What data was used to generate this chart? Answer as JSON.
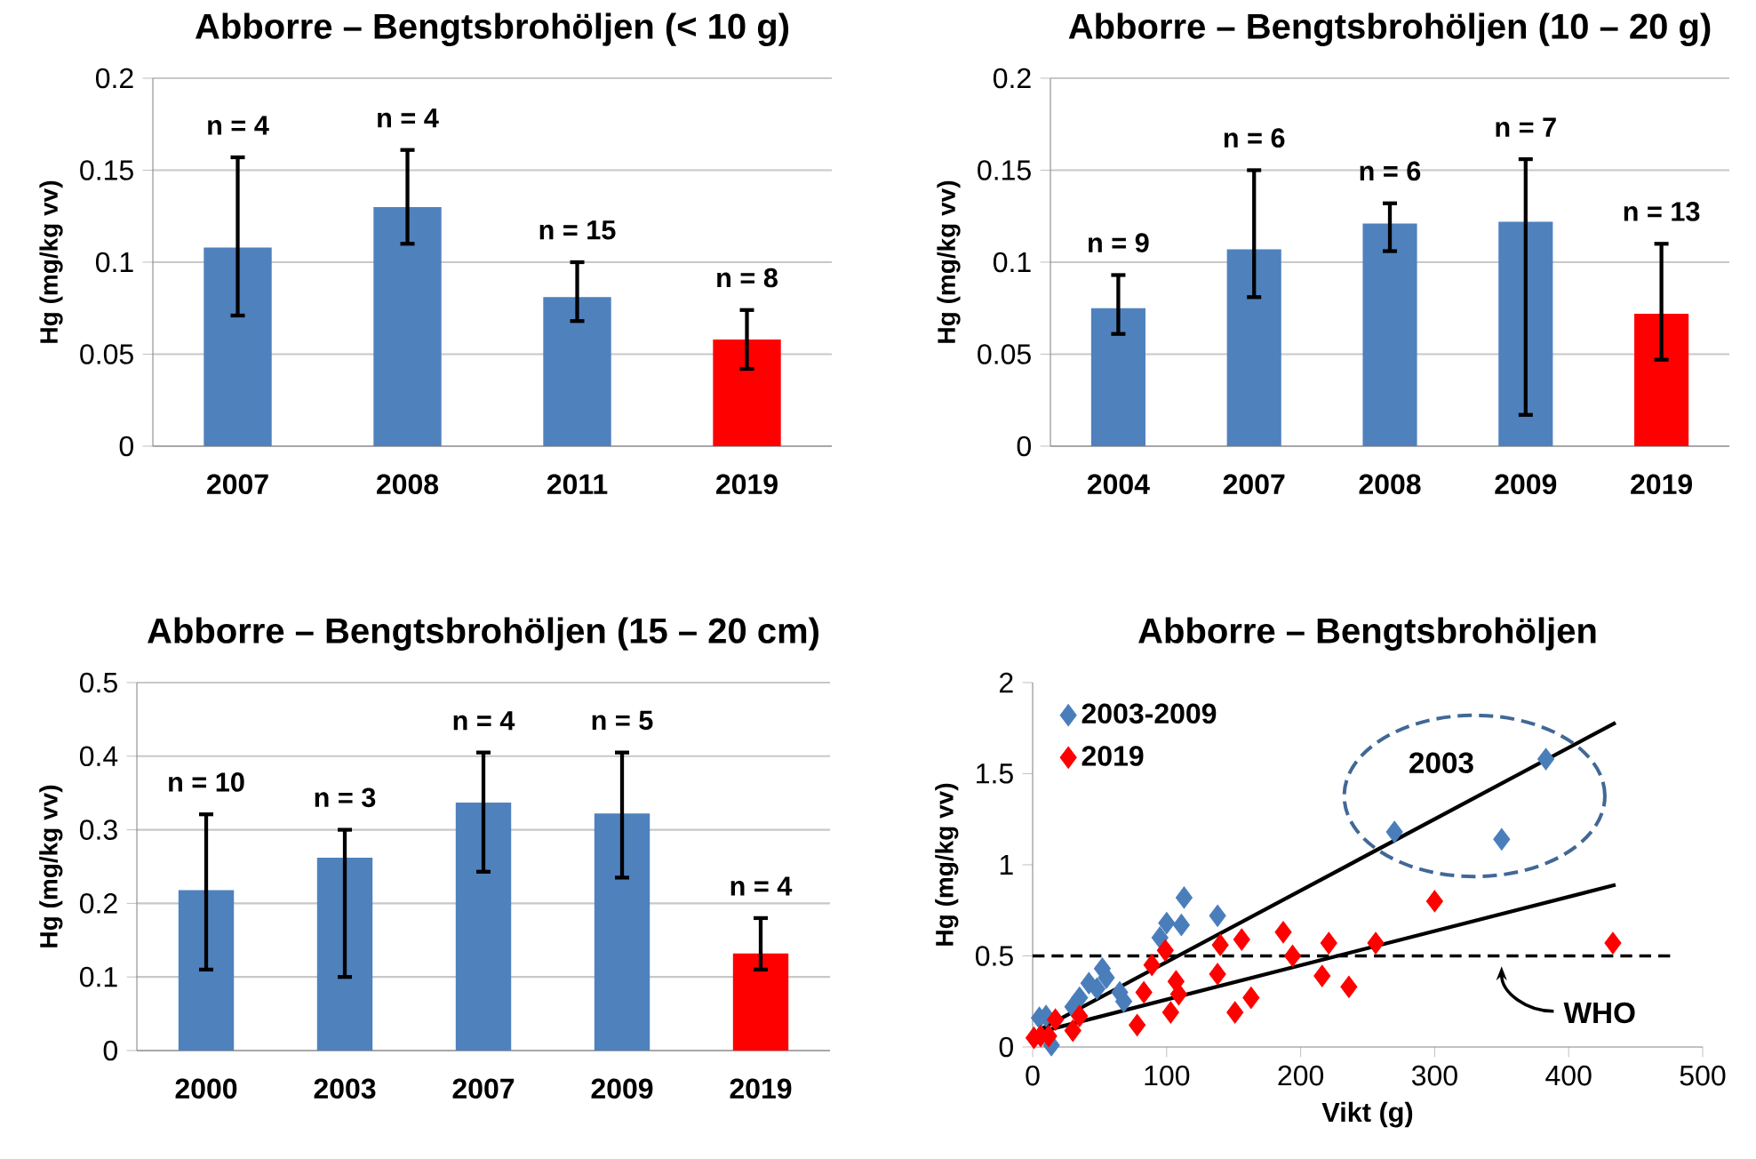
{
  "chart_data": [
    {
      "type": "bar",
      "title": "Abborre – Bengtsbrohöljen (< 10 g)",
      "ylabel": "Hg (mg/kg vv)",
      "categories": [
        "2007",
        "2008",
        "2011",
        "2019"
      ],
      "values": [
        0.108,
        0.13,
        0.081,
        0.058
      ],
      "colors": [
        "#4f81bd",
        "#4f81bd",
        "#4f81bd",
        "#ff0000"
      ],
      "errors": [
        [
          0.071,
          0.157
        ],
        [
          0.11,
          0.161
        ],
        [
          0.068,
          0.1
        ],
        [
          0.042,
          0.074
        ]
      ],
      "ylim": [
        0,
        0.2
      ],
      "yticks": [
        0,
        0.05,
        0.1,
        0.15,
        0.2
      ],
      "grid": "y",
      "annotations": [
        {
          "text": "n = 4",
          "x": "2007",
          "y": 0.157
        },
        {
          "text": "n = 4",
          "x": "2008",
          "y": 0.161
        },
        {
          "text": "n = 15",
          "x": "2011",
          "y": 0.1
        },
        {
          "text": "n = 8",
          "x": "2019",
          "y": 0.074
        }
      ]
    },
    {
      "type": "bar",
      "title": "Abborre – Bengtsbrohöljen (10 – 20 g)",
      "ylabel": "Hg (mg/kg vv)",
      "categories": [
        "2004",
        "2007",
        "2008",
        "2009",
        "2019"
      ],
      "values": [
        0.075,
        0.107,
        0.121,
        0.122,
        0.072
      ],
      "colors": [
        "#4f81bd",
        "#4f81bd",
        "#4f81bd",
        "#4f81bd",
        "#ff0000"
      ],
      "errors": [
        [
          0.061,
          0.093
        ],
        [
          0.081,
          0.15
        ],
        [
          0.106,
          0.132
        ],
        [
          0.017,
          0.156
        ],
        [
          0.047,
          0.11
        ]
      ],
      "ylim": [
        0,
        0.2
      ],
      "yticks": [
        0,
        0.05,
        0.1,
        0.15,
        0.2
      ],
      "grid": "y",
      "annotations": [
        {
          "text": "n = 9",
          "x": "2004",
          "y": 0.093
        },
        {
          "text": "n = 6",
          "x": "2007",
          "y": 0.15
        },
        {
          "text": "n = 6",
          "x": "2008",
          "y": 0.132
        },
        {
          "text": "n = 7",
          "x": "2009",
          "y": 0.156
        },
        {
          "text": "n = 13",
          "x": "2019",
          "y": 0.11
        }
      ]
    },
    {
      "type": "bar",
      "title": "Abborre – Bengtsbrohöljen (15 – 20 cm)",
      "ylabel": "Hg (mg/kg vv)",
      "categories": [
        "2000",
        "2003",
        "2007",
        "2009",
        "2019"
      ],
      "values": [
        0.218,
        0.262,
        0.337,
        0.322,
        0.132
      ],
      "colors": [
        "#4f81bd",
        "#4f81bd",
        "#4f81bd",
        "#4f81bd",
        "#ff0000"
      ],
      "errors": [
        [
          0.11,
          0.321
        ],
        [
          0.1,
          0.3
        ],
        [
          0.243,
          0.405
        ],
        [
          0.235,
          0.405
        ],
        [
          0.11,
          0.18
        ]
      ],
      "ylim": [
        0,
        0.5
      ],
      "yticks": [
        0,
        0.1,
        0.2,
        0.3,
        0.4,
        0.5
      ],
      "grid": "y",
      "annotations": [
        {
          "text": "n = 10",
          "x": "2000",
          "y": 0.321
        },
        {
          "text": "n = 3",
          "x": "2003",
          "y": 0.3
        },
        {
          "text": "n = 4",
          "x": "2007",
          "y": 0.405
        },
        {
          "text": "n = 5",
          "x": "2009",
          "y": 0.405
        },
        {
          "text": "n = 4",
          "x": "2019",
          "y": 0.18
        }
      ]
    },
    {
      "type": "scatter",
      "title": "Abborre – Bengtsbrohöljen",
      "xlabel": "Vikt (g)",
      "ylabel": "Hg (mg/kg vv)",
      "marker": "diamond",
      "legend": "top left",
      "xlim": [
        0,
        500
      ],
      "xticks": [
        0,
        100,
        200,
        300,
        400,
        500
      ],
      "ylim": [
        0,
        2
      ],
      "yticks": [
        0,
        0.5,
        1,
        1.5,
        2
      ],
      "series": [
        {
          "name": "2003-2009",
          "color": "#4a7ebb",
          "x": [
            5,
            10,
            14,
            30,
            35,
            42,
            48,
            52,
            55,
            65,
            68,
            95,
            100,
            111,
            113,
            138,
            270,
            350,
            383
          ],
          "values": [
            0.16,
            0.17,
            0.01,
            0.22,
            0.27,
            0.35,
            0.32,
            0.43,
            0.38,
            0.3,
            0.25,
            0.6,
            0.68,
            0.67,
            0.82,
            0.72,
            1.18,
            1.14,
            1.58
          ]
        },
        {
          "name": "2019",
          "color": "#ff0000",
          "x": [
            1,
            6,
            12,
            17,
            30,
            35,
            78,
            83,
            89,
            99,
            103,
            107,
            109,
            138,
            140,
            151,
            156,
            163,
            187,
            194,
            216,
            221,
            236,
            256,
            300,
            433
          ],
          "values": [
            0.05,
            0.06,
            0.06,
            0.15,
            0.09,
            0.17,
            0.12,
            0.3,
            0.45,
            0.53,
            0.19,
            0.36,
            0.29,
            0.4,
            0.56,
            0.19,
            0.59,
            0.27,
            0.63,
            0.5,
            0.39,
            0.57,
            0.33,
            0.57,
            0.8,
            0.57
          ]
        },
        {
          "type": "line",
          "marker": "none",
          "color": "#000000",
          "x": [
            4,
            435
          ],
          "values": [
            0.09,
            1.78
          ]
        },
        {
          "type": "line",
          "marker": "none",
          "color": "#000000",
          "x": [
            4,
            435
          ],
          "values": [
            0.08,
            0.89
          ]
        }
      ],
      "ref_lines": [
        {
          "axis": "y",
          "value": 0.5,
          "label": "WHO",
          "line_style": "dashed",
          "color": "#000000"
        }
      ],
      "annotations": [
        "2003"
      ]
    }
  ]
}
